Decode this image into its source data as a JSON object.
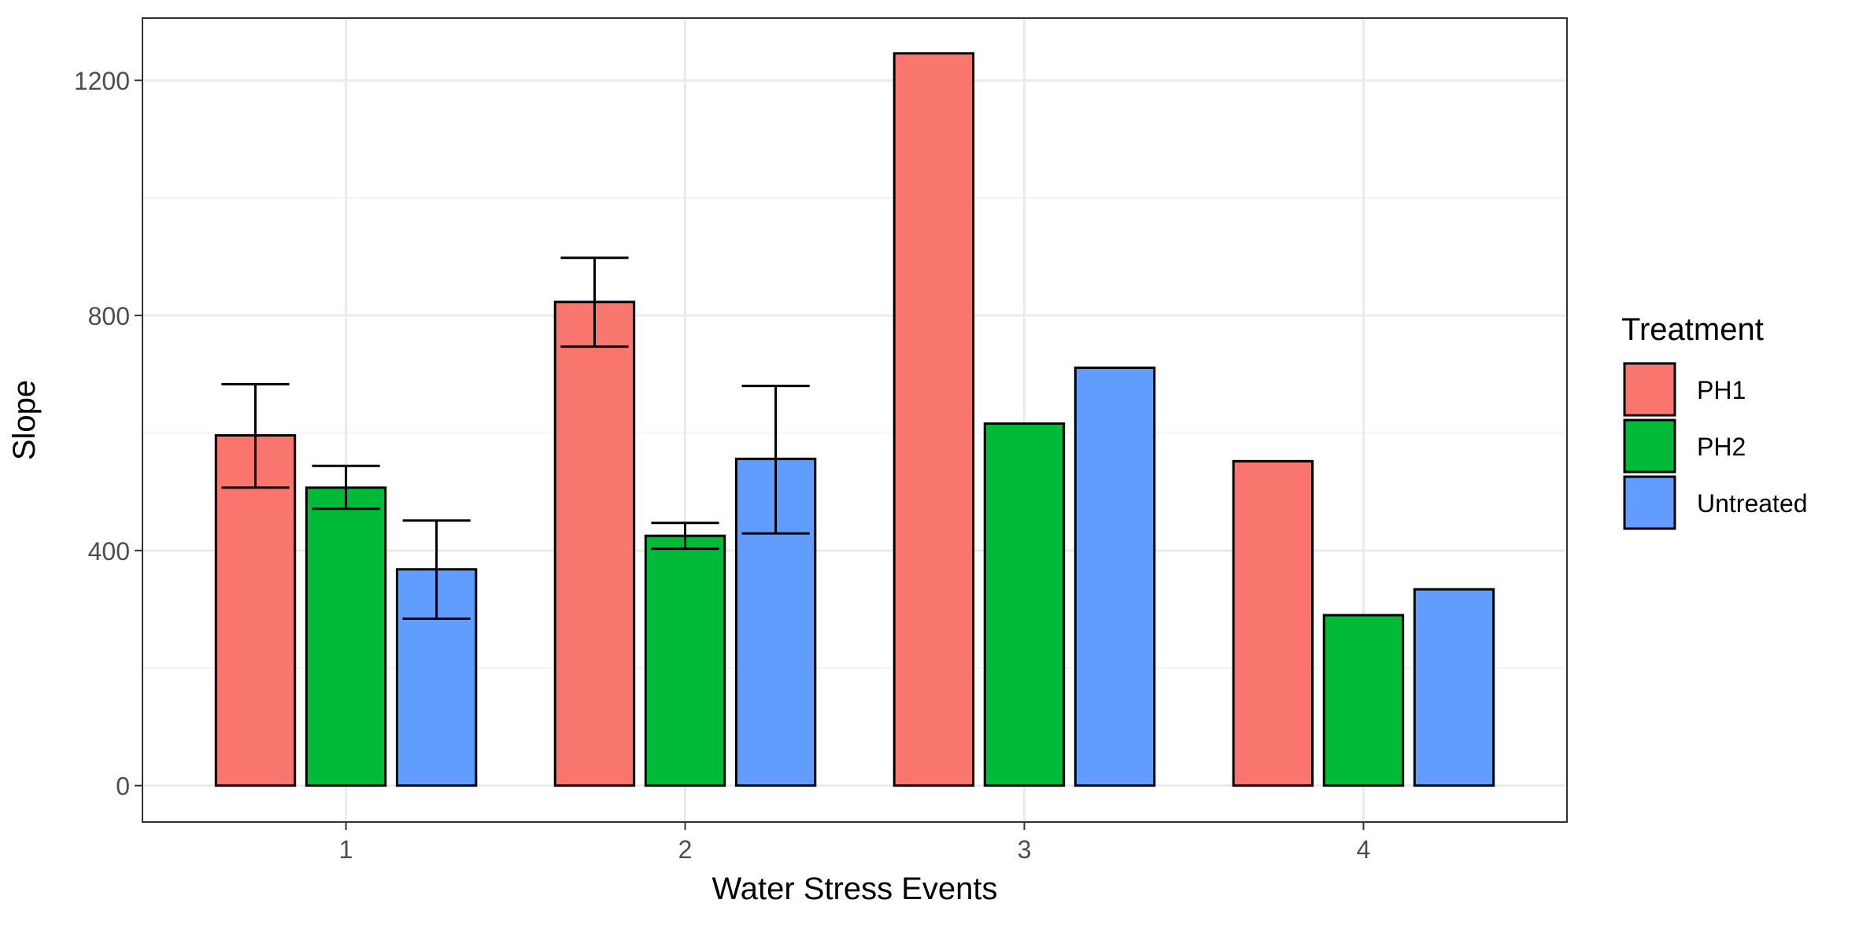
{
  "chart_data": {
    "type": "bar",
    "title": "",
    "xlabel": "Water Stress Events",
    "ylabel": "Slope",
    "categories": [
      "1",
      "2",
      "3",
      "4"
    ],
    "xlim": [
      0.4,
      4.6
    ],
    "ylim": [
      -62,
      1306
    ],
    "yticks": [
      0,
      400,
      800,
      1200
    ],
    "ytick_labels": [
      "0",
      "400",
      "800",
      "1200"
    ],
    "grid": true,
    "legend": {
      "title": "Treatment",
      "position": "right"
    },
    "series": [
      {
        "name": "PH1",
        "color": "#F8766D",
        "values": [
          596,
          823,
          1246,
          552
        ],
        "err_low": [
          507,
          747,
          null,
          null
        ],
        "err_high": [
          683,
          898,
          null,
          null
        ]
      },
      {
        "name": "PH2",
        "color": "#00BA38",
        "values": [
          507,
          425,
          616,
          290
        ],
        "err_low": [
          471,
          403,
          null,
          null
        ],
        "err_high": [
          544,
          447,
          null,
          null
        ]
      },
      {
        "name": "Untreated",
        "color": "#619CFF",
        "values": [
          368,
          556,
          711,
          334
        ],
        "err_low": [
          284,
          429,
          null,
          null
        ],
        "err_high": [
          451,
          680,
          null,
          null
        ]
      }
    ]
  }
}
